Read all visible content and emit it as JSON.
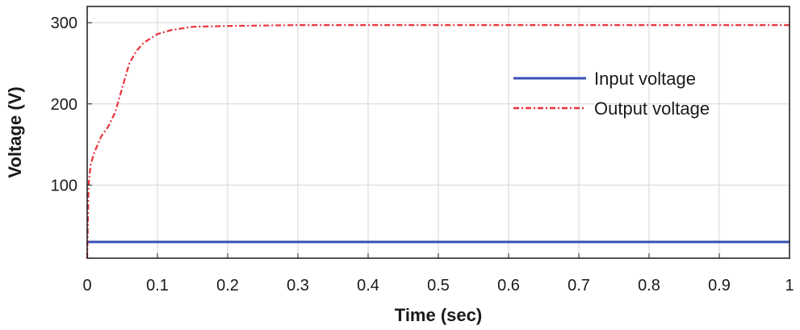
{
  "chart_data": {
    "type": "line",
    "xlabel": "Time (sec)",
    "ylabel": "Voltage (V)",
    "xlim": [
      0,
      1
    ],
    "ylim": [
      10,
      320
    ],
    "xticks": [
      0,
      0.1,
      0.2,
      0.3,
      0.4,
      0.5,
      0.6,
      0.7,
      0.8,
      0.9,
      1
    ],
    "xtick_labels": [
      "0",
      "0.1",
      "0.2",
      "0.3",
      "0.4",
      "0.5",
      "0.6",
      "0.7",
      "0.8",
      "0.9",
      "1"
    ],
    "yticks": [
      100,
      200,
      300
    ],
    "ytick_labels": [
      "100",
      "200",
      "300"
    ],
    "grid": true,
    "legend_position": "upper-right",
    "series": [
      {
        "name": "Input voltage",
        "color": "#3a4fb5",
        "style": "solid",
        "x": [
          0,
          1
        ],
        "y": [
          30,
          30
        ]
      },
      {
        "name": "Output voltage",
        "color": "#e8333a",
        "style": "dash-dot",
        "x": [
          0,
          0.002,
          0.005,
          0.01,
          0.02,
          0.03,
          0.04,
          0.05,
          0.06,
          0.07,
          0.08,
          0.1,
          0.12,
          0.15,
          0.2,
          0.3,
          0.5,
          0.7,
          0.9,
          1
        ],
        "y": [
          10,
          100,
          125,
          140,
          160,
          172,
          190,
          220,
          250,
          265,
          275,
          286,
          291,
          295,
          296,
          297,
          297,
          297,
          297,
          297
        ]
      }
    ]
  }
}
